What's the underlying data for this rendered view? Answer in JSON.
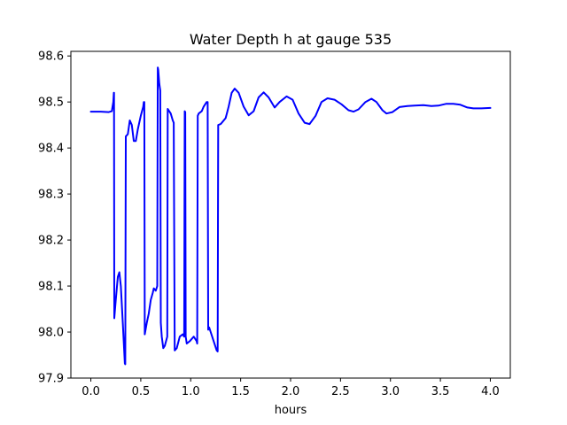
{
  "chart_data": {
    "type": "line",
    "title": "Water Depth h at gauge 535",
    "xlabel": "hours",
    "ylabel": "",
    "xlim": [
      -0.2,
      4.2
    ],
    "ylim": [
      97.9,
      98.61
    ],
    "xticks": [
      0.0,
      0.5,
      1.0,
      1.5,
      2.0,
      2.5,
      3.0,
      3.5,
      4.0
    ],
    "xtick_labels": [
      "0.0",
      "0.5",
      "1.0",
      "1.5",
      "2.0",
      "2.5",
      "3.0",
      "3.5",
      "4.0"
    ],
    "yticks": [
      97.9,
      98.0,
      98.1,
      98.2,
      98.3,
      98.4,
      98.5,
      98.6
    ],
    "ytick_labels": [
      "97.9",
      "98.0",
      "98.1",
      "98.2",
      "98.3",
      "98.4",
      "98.5",
      "98.6"
    ],
    "grid": false,
    "legend": "none",
    "series": [
      {
        "color": "#0000ff",
        "points": [
          [
            0.0,
            98.479
          ],
          [
            0.1,
            98.479
          ],
          [
            0.18,
            98.478
          ],
          [
            0.21,
            98.48
          ],
          [
            0.225,
            98.5
          ],
          [
            0.23,
            98.52
          ],
          [
            0.232,
            98.52
          ],
          [
            0.235,
            98.03
          ],
          [
            0.25,
            98.07
          ],
          [
            0.27,
            98.12
          ],
          [
            0.285,
            98.13
          ],
          [
            0.3,
            98.1
          ],
          [
            0.32,
            98.02
          ],
          [
            0.34,
            97.932
          ],
          [
            0.345,
            97.93
          ],
          [
            0.35,
            98.425
          ],
          [
            0.37,
            98.43
          ],
          [
            0.39,
            98.46
          ],
          [
            0.41,
            98.45
          ],
          [
            0.43,
            98.415
          ],
          [
            0.45,
            98.415
          ],
          [
            0.47,
            98.44
          ],
          [
            0.5,
            98.47
          ],
          [
            0.525,
            98.49
          ],
          [
            0.53,
            98.5
          ],
          [
            0.535,
            98.5
          ],
          [
            0.54,
            97.995
          ],
          [
            0.56,
            98.02
          ],
          [
            0.58,
            98.04
          ],
          [
            0.6,
            98.07
          ],
          [
            0.62,
            98.085
          ],
          [
            0.63,
            98.095
          ],
          [
            0.65,
            98.09
          ],
          [
            0.665,
            98.1
          ],
          [
            0.67,
            98.575
          ],
          [
            0.675,
            98.57
          ],
          [
            0.685,
            98.54
          ],
          [
            0.695,
            98.525
          ],
          [
            0.7,
            98.02
          ],
          [
            0.71,
            97.99
          ],
          [
            0.725,
            97.965
          ],
          [
            0.74,
            97.97
          ],
          [
            0.765,
            97.99
          ],
          [
            0.77,
            98.485
          ],
          [
            0.785,
            98.48
          ],
          [
            0.8,
            98.475
          ],
          [
            0.82,
            98.46
          ],
          [
            0.83,
            98.455
          ],
          [
            0.84,
            97.96
          ],
          [
            0.86,
            97.965
          ],
          [
            0.89,
            97.99
          ],
          [
            0.92,
            97.995
          ],
          [
            0.935,
            97.99
          ],
          [
            0.94,
            98.48
          ],
          [
            0.945,
            98.478
          ],
          [
            0.95,
            97.99
          ],
          [
            0.96,
            97.975
          ],
          [
            0.99,
            97.98
          ],
          [
            1.03,
            97.99
          ],
          [
            1.06,
            97.98
          ],
          [
            1.065,
            97.975
          ],
          [
            1.07,
            98.47
          ],
          [
            1.08,
            98.475
          ],
          [
            1.11,
            98.48
          ],
          [
            1.13,
            98.49
          ],
          [
            1.16,
            98.5
          ],
          [
            1.17,
            98.5
          ],
          [
            1.175,
            98.005
          ],
          [
            1.185,
            98.01
          ],
          [
            1.2,
            98.0
          ],
          [
            1.23,
            97.98
          ],
          [
            1.26,
            97.96
          ],
          [
            1.27,
            97.958
          ],
          [
            1.275,
            98.45
          ],
          [
            1.3,
            98.452
          ],
          [
            1.35,
            98.465
          ],
          [
            1.38,
            98.49
          ],
          [
            1.41,
            98.52
          ],
          [
            1.44,
            98.529
          ],
          [
            1.48,
            98.52
          ],
          [
            1.53,
            98.49
          ],
          [
            1.58,
            98.471
          ],
          [
            1.63,
            98.48
          ],
          [
            1.68,
            98.51
          ],
          [
            1.73,
            98.521
          ],
          [
            1.78,
            98.51
          ],
          [
            1.84,
            98.488
          ],
          [
            1.89,
            98.5
          ],
          [
            1.96,
            98.512
          ],
          [
            2.02,
            98.505
          ],
          [
            2.08,
            98.475
          ],
          [
            2.14,
            98.455
          ],
          [
            2.19,
            98.452
          ],
          [
            2.25,
            98.47
          ],
          [
            2.31,
            98.5
          ],
          [
            2.37,
            98.508
          ],
          [
            2.44,
            98.505
          ],
          [
            2.51,
            98.495
          ],
          [
            2.58,
            98.482
          ],
          [
            2.63,
            98.479
          ],
          [
            2.68,
            98.484
          ],
          [
            2.75,
            98.5
          ],
          [
            2.81,
            98.507
          ],
          [
            2.86,
            98.5
          ],
          [
            2.92,
            98.482
          ],
          [
            2.96,
            98.475
          ],
          [
            3.02,
            98.478
          ],
          [
            3.09,
            98.489
          ],
          [
            3.17,
            98.491
          ],
          [
            3.24,
            98.492
          ],
          [
            3.33,
            98.493
          ],
          [
            3.41,
            98.491
          ],
          [
            3.48,
            98.492
          ],
          [
            3.56,
            98.496
          ],
          [
            3.63,
            98.496
          ],
          [
            3.7,
            98.494
          ],
          [
            3.77,
            98.488
          ],
          [
            3.83,
            98.486
          ],
          [
            3.91,
            98.486
          ],
          [
            4.0,
            98.487
          ]
        ]
      }
    ]
  }
}
